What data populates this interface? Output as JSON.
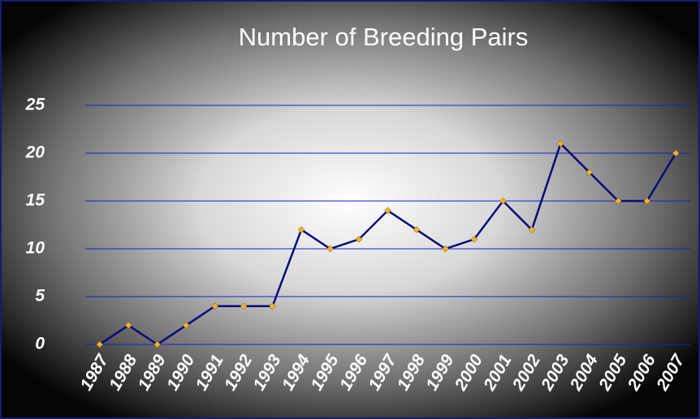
{
  "chart_data": {
    "type": "line",
    "title": "Number of Breeding Pairs",
    "categories": [
      "1987",
      "1988",
      "1989",
      "1990",
      "1991",
      "1992",
      "1993",
      "1994",
      "1995",
      "1996",
      "1997",
      "1998",
      "1999",
      "2000",
      "2001",
      "2002",
      "2003",
      "2004",
      "2005",
      "2006",
      "2007"
    ],
    "series": [
      {
        "color": "#0a0a7a",
        "values": [
          0,
          2,
          0,
          2,
          4,
          4,
          4,
          12,
          10,
          11,
          14,
          12,
          10,
          11,
          15,
          12,
          21,
          18,
          15,
          15,
          20
        ]
      }
    ],
    "marker_color": "#f2b430",
    "ylim": [
      0,
      25
    ],
    "yticks": [
      0,
      5,
      10,
      15,
      20,
      25
    ],
    "grid": true,
    "grid_color": "#1c1cc8"
  }
}
